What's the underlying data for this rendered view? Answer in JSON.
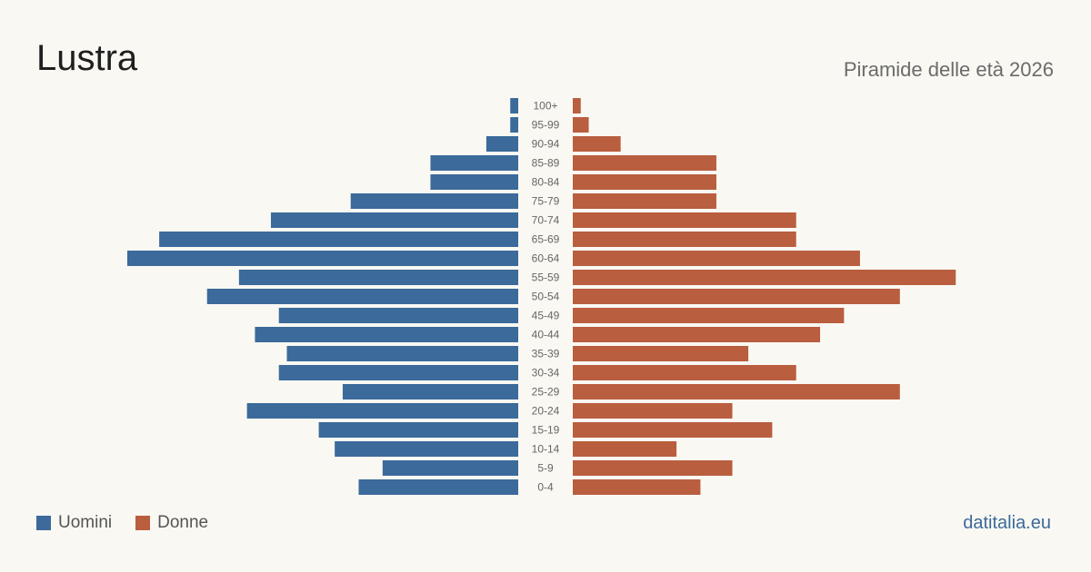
{
  "header": {
    "title": "Lustra",
    "subtitle": "Piramide delle età 2026"
  },
  "legend": {
    "men_label": "Uomini",
    "women_label": "Donne"
  },
  "footer": {
    "source": "datitalia.eu"
  },
  "colors": {
    "men": "#3b6a9b",
    "women": "#b95e3e",
    "tick": "#666666"
  },
  "chart_data": {
    "type": "bar",
    "orientation": "horizontal-pyramid",
    "categories": [
      "100+",
      "95-99",
      "90-94",
      "85-89",
      "80-84",
      "75-79",
      "70-74",
      "65-69",
      "60-64",
      "55-59",
      "50-54",
      "45-49",
      "40-44",
      "35-39",
      "30-34",
      "25-29",
      "20-24",
      "15-19",
      "10-14",
      "5-9",
      "0-4"
    ],
    "series": [
      {
        "name": "Uomini",
        "values": [
          1,
          1,
          4,
          11,
          11,
          21,
          31,
          45,
          49,
          35,
          39,
          30,
          33,
          29,
          30,
          22,
          34,
          25,
          23,
          17,
          20
        ]
      },
      {
        "name": "Donne",
        "values": [
          1,
          2,
          6,
          18,
          18,
          18,
          28,
          28,
          36,
          48,
          41,
          34,
          31,
          22,
          28,
          41,
          20,
          25,
          13,
          20,
          16
        ]
      }
    ],
    "xlim": [
      0,
      49
    ],
    "grid": false,
    "legend_position": "bottom-left"
  }
}
